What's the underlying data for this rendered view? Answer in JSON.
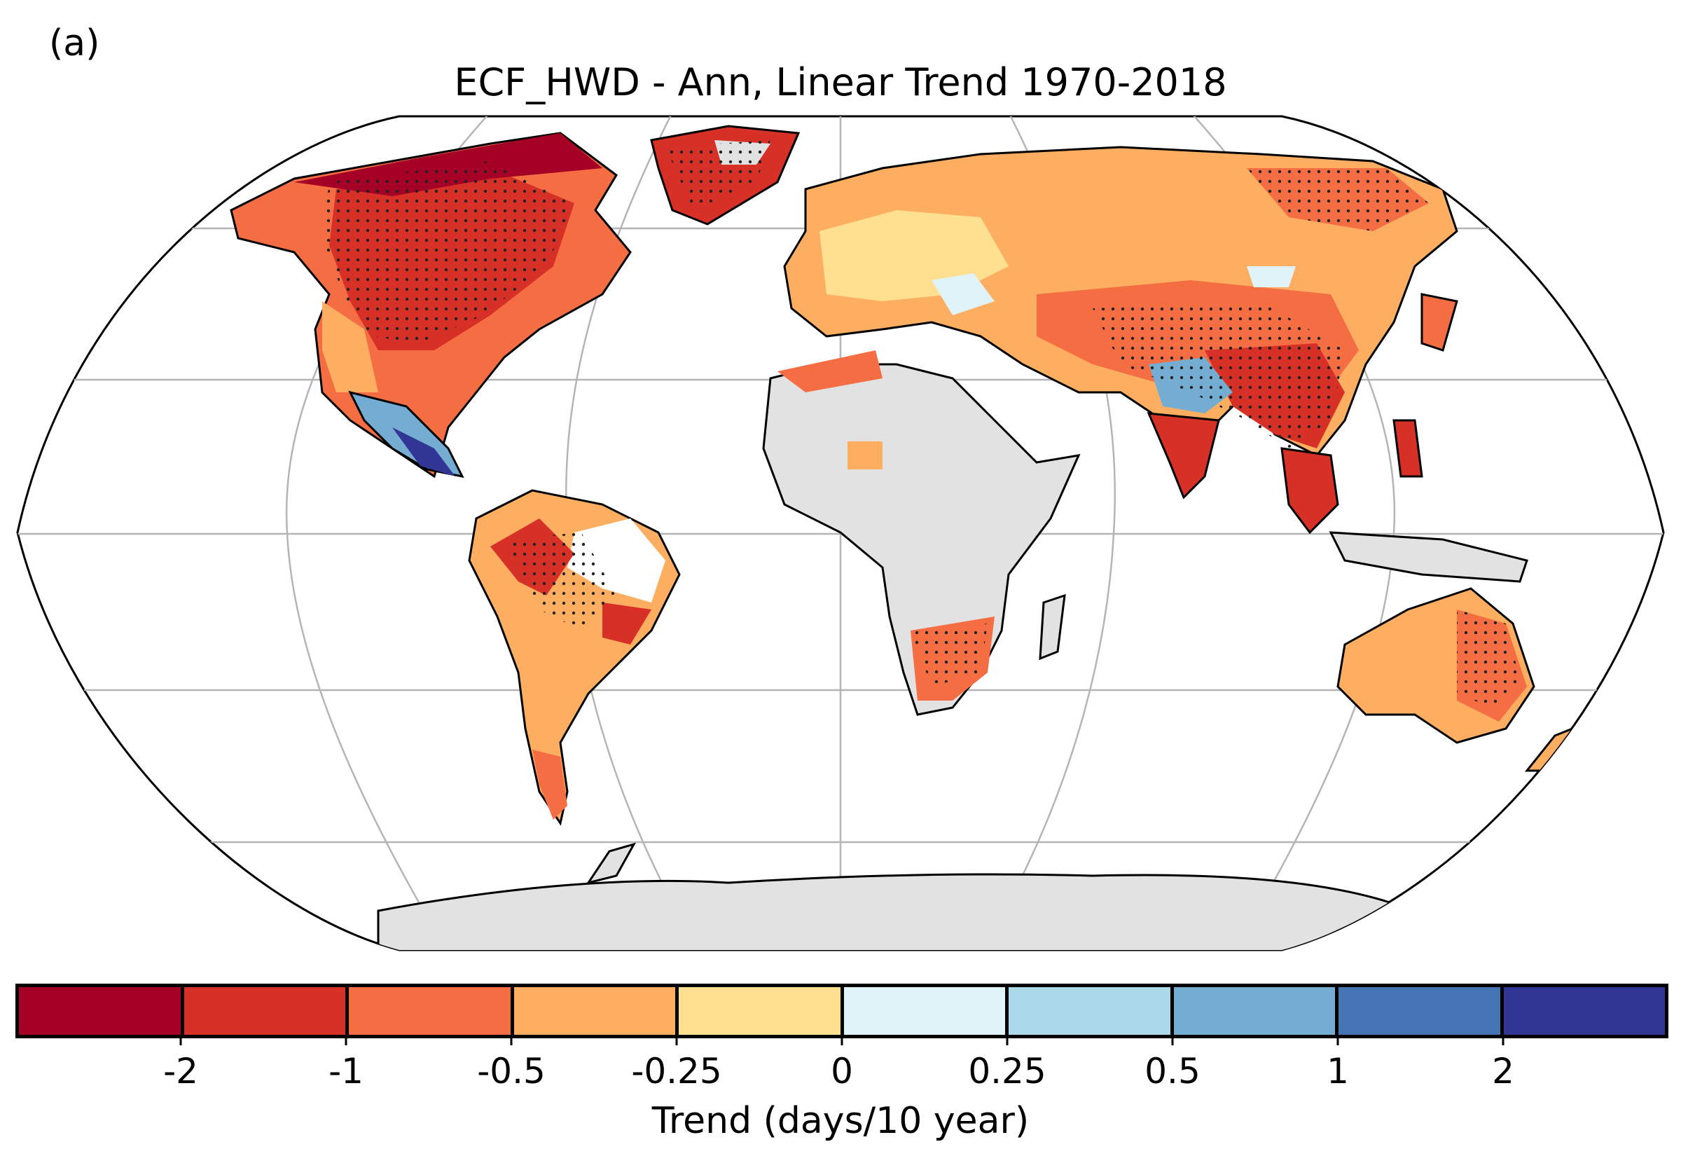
{
  "panel_label": "(a)",
  "title": "ECF_HWD - Ann, Linear Trend 1970-2018",
  "colorbar": {
    "label": "Trend (days/10 year)",
    "ticks": [
      "-2",
      "-1",
      "-0.5",
      "-0.25",
      "0",
      "0.25",
      "0.5",
      "1",
      "2"
    ],
    "colors": [
      "#a50026",
      "#d73027",
      "#f46d43",
      "#fdae61",
      "#fee090",
      "#e0f3f8",
      "#abd9e9",
      "#74add1",
      "#4575b4",
      "#313695"
    ]
  },
  "map": {
    "projection": "Robinson",
    "gridlines": true,
    "land_no_data_color": "#e2e2e2",
    "significance_stippling": true
  }
}
